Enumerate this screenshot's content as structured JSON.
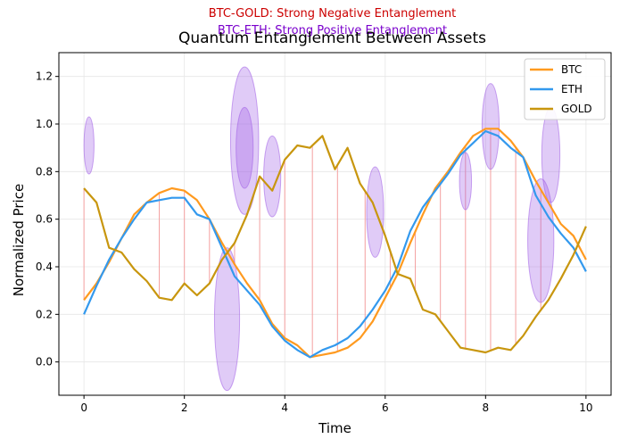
{
  "chart_data": {
    "type": "line",
    "title": "Quantum Entanglement Between Assets",
    "annotations": [
      {
        "text": "BTC-GOLD: Strong Negative Entanglement",
        "color": "#cc0000"
      },
      {
        "text": "BTC-ETH: Strong Positive Entanglement",
        "color": "#7a00cc"
      }
    ],
    "xlabel": "Time",
    "ylabel": "Normalized Price",
    "xlim": [
      -0.5,
      10.5
    ],
    "ylim": [
      -0.14,
      1.3
    ],
    "xticks": [
      "0",
      "2",
      "4",
      "6",
      "8",
      "10"
    ],
    "yticks": [
      "0.0",
      "0.2",
      "0.4",
      "0.6",
      "0.8",
      "1.0",
      "1.2"
    ],
    "grid": true,
    "legend": {
      "position": "upper right",
      "entries": [
        "BTC",
        "ETH",
        "GOLD"
      ]
    },
    "series": [
      {
        "name": "BTC",
        "color": "#ff9a1f",
        "x": [
          0,
          0.25,
          0.5,
          0.75,
          1,
          1.25,
          1.5,
          1.75,
          2,
          2.25,
          2.5,
          2.75,
          3,
          3.25,
          3.5,
          3.75,
          4,
          4.25,
          4.5,
          4.75,
          5,
          5.25,
          5.5,
          5.75,
          6,
          6.25,
          6.5,
          6.75,
          7,
          7.25,
          7.5,
          7.75,
          8,
          8.25,
          8.5,
          8.75,
          9,
          9.25,
          9.5,
          9.75,
          10
        ],
        "values": [
          0.26,
          0.33,
          0.42,
          0.52,
          0.62,
          0.67,
          0.71,
          0.73,
          0.72,
          0.68,
          0.6,
          0.5,
          0.41,
          0.33,
          0.26,
          0.16,
          0.1,
          0.07,
          0.02,
          0.03,
          0.04,
          0.06,
          0.1,
          0.17,
          0.27,
          0.37,
          0.5,
          0.62,
          0.73,
          0.8,
          0.88,
          0.95,
          0.98,
          0.98,
          0.93,
          0.86,
          0.76,
          0.67,
          0.58,
          0.53,
          0.43
        ]
      },
      {
        "name": "ETH",
        "color": "#3399ee",
        "x": [
          0,
          0.25,
          0.5,
          0.75,
          1,
          1.25,
          1.5,
          1.75,
          2,
          2.25,
          2.5,
          2.75,
          3,
          3.25,
          3.5,
          3.75,
          4,
          4.25,
          4.5,
          4.75,
          5,
          5.25,
          5.5,
          5.75,
          6,
          6.25,
          6.5,
          6.75,
          7,
          7.25,
          7.5,
          7.75,
          8,
          8.25,
          8.5,
          8.75,
          9,
          9.25,
          9.5,
          9.75,
          10
        ],
        "values": [
          0.2,
          0.32,
          0.43,
          0.52,
          0.6,
          0.67,
          0.68,
          0.69,
          0.69,
          0.62,
          0.6,
          0.48,
          0.36,
          0.3,
          0.24,
          0.15,
          0.09,
          0.05,
          0.02,
          0.05,
          0.07,
          0.1,
          0.15,
          0.22,
          0.3,
          0.4,
          0.55,
          0.65,
          0.72,
          0.79,
          0.87,
          0.92,
          0.97,
          0.95,
          0.9,
          0.86,
          0.7,
          0.61,
          0.54,
          0.48,
          0.38
        ]
      },
      {
        "name": "GOLD",
        "color": "#c8960e",
        "x": [
          0,
          0.25,
          0.5,
          0.75,
          1,
          1.25,
          1.5,
          1.75,
          2,
          2.25,
          2.5,
          2.75,
          3,
          3.25,
          3.5,
          3.75,
          4,
          4.25,
          4.5,
          4.75,
          5,
          5.25,
          5.5,
          5.75,
          6,
          6.25,
          6.5,
          6.75,
          7,
          7.25,
          7.5,
          7.75,
          8,
          8.25,
          8.5,
          8.75,
          9,
          9.25,
          9.5,
          9.75,
          10
        ],
        "values": [
          0.73,
          0.67,
          0.48,
          0.46,
          0.39,
          0.34,
          0.27,
          0.26,
          0.33,
          0.28,
          0.33,
          0.43,
          0.5,
          0.62,
          0.78,
          0.72,
          0.85,
          0.91,
          0.9,
          0.95,
          0.81,
          0.9,
          0.75,
          0.67,
          0.53,
          0.37,
          0.35,
          0.22,
          0.2,
          0.13,
          0.06,
          0.05,
          0.04,
          0.06,
          0.05,
          0.11,
          0.19,
          0.26,
          0.35,
          0.45,
          0.57
        ]
      }
    ],
    "entanglement_links": {
      "color": "#f4a0a0",
      "x": [
        0,
        1.5,
        2.0,
        2.5,
        3.0,
        3.5,
        4.0,
        4.55,
        5.05,
        5.6,
        6.1,
        6.6,
        7.1,
        7.6,
        8.1,
        8.6,
        9.1
      ]
    },
    "entanglement_clouds": {
      "color": "#a05ee6",
      "items": [
        {
          "x": 0.1,
          "y": 0.91,
          "rx": 0.1,
          "ry": 0.12
        },
        {
          "x": 2.85,
          "y": 0.18,
          "rx": 0.25,
          "ry": 0.3
        },
        {
          "x": 3.2,
          "y": 0.93,
          "rx": 0.28,
          "ry": 0.31
        },
        {
          "x": 3.2,
          "y": 0.9,
          "rx": 0.17,
          "ry": 0.17
        },
        {
          "x": 3.75,
          "y": 0.78,
          "rx": 0.17,
          "ry": 0.17
        },
        {
          "x": 5.8,
          "y": 0.63,
          "rx": 0.17,
          "ry": 0.19
        },
        {
          "x": 7.6,
          "y": 0.76,
          "rx": 0.12,
          "ry": 0.12
        },
        {
          "x": 8.1,
          "y": 0.99,
          "rx": 0.17,
          "ry": 0.18
        },
        {
          "x": 9.1,
          "y": 0.51,
          "rx": 0.26,
          "ry": 0.26
        },
        {
          "x": 9.3,
          "y": 0.87,
          "rx": 0.18,
          "ry": 0.2
        }
      ]
    }
  }
}
